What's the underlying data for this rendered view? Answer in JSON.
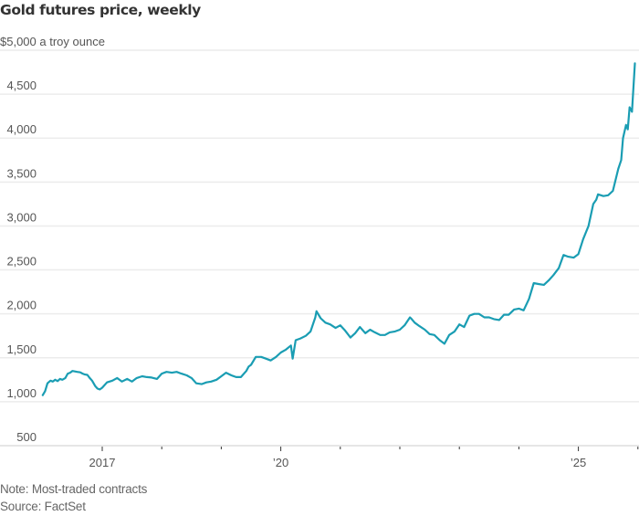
{
  "chart_data": {
    "type": "line",
    "title": "Gold futures price, weekly",
    "ylabel": "$5,000 a troy ounce",
    "xlabel": "",
    "note": "Note: Most-traded contracts",
    "source": "Source: FactSet",
    "ylim": [
      500,
      5000
    ],
    "xlim": [
      2016.0,
      2025.95
    ],
    "grid": true,
    "y_ticks": [
      {
        "value": 500,
        "label": "500"
      },
      {
        "value": 1000,
        "label": "1,000"
      },
      {
        "value": 1500,
        "label": "1,500"
      },
      {
        "value": 2000,
        "label": "2,000"
      },
      {
        "value": 2500,
        "label": "2,500"
      },
      {
        "value": 3000,
        "label": "3,000"
      },
      {
        "value": 3500,
        "label": "3,500"
      },
      {
        "value": 4000,
        "label": "4,000"
      },
      {
        "value": 4500,
        "label": "4,500"
      },
      {
        "value": 5000,
        "label": "$5,000 a troy ounce"
      }
    ],
    "x_ticks": [
      {
        "value": 2017,
        "label": "2017"
      },
      {
        "value": 2018,
        "label": ""
      },
      {
        "value": 2019,
        "label": ""
      },
      {
        "value": 2020,
        "label": "'20"
      },
      {
        "value": 2021,
        "label": ""
      },
      {
        "value": 2022,
        "label": ""
      },
      {
        "value": 2023,
        "label": ""
      },
      {
        "value": 2024,
        "label": ""
      },
      {
        "value": 2025,
        "label": "'25"
      },
      {
        "value": 2026,
        "label": ""
      }
    ],
    "series": [
      {
        "name": "Gold futures",
        "color": "#1a9db3",
        "x": [
          2016.0,
          2016.04,
          2016.08,
          2016.13,
          2016.17,
          2016.21,
          2016.25,
          2016.29,
          2016.33,
          2016.38,
          2016.42,
          2016.46,
          2016.5,
          2016.54,
          2016.58,
          2016.63,
          2016.67,
          2016.71,
          2016.75,
          2016.79,
          2016.83,
          2016.88,
          2016.92,
          2016.96,
          2017.0,
          2017.08,
          2017.17,
          2017.25,
          2017.33,
          2017.42,
          2017.5,
          2017.58,
          2017.67,
          2017.75,
          2017.83,
          2017.92,
          2018.0,
          2018.08,
          2018.17,
          2018.25,
          2018.33,
          2018.42,
          2018.5,
          2018.58,
          2018.67,
          2018.75,
          2018.83,
          2018.92,
          2019.0,
          2019.08,
          2019.17,
          2019.25,
          2019.33,
          2019.42,
          2019.46,
          2019.5,
          2019.58,
          2019.67,
          2019.75,
          2019.83,
          2019.92,
          2020.0,
          2020.08,
          2020.17,
          2020.2,
          2020.25,
          2020.33,
          2020.42,
          2020.5,
          2020.58,
          2020.6,
          2020.67,
          2020.75,
          2020.83,
          2020.92,
          2021.0,
          2021.08,
          2021.17,
          2021.25,
          2021.33,
          2021.42,
          2021.5,
          2021.58,
          2021.67,
          2021.75,
          2021.83,
          2021.92,
          2022.0,
          2022.08,
          2022.17,
          2022.2,
          2022.25,
          2022.33,
          2022.42,
          2022.5,
          2022.58,
          2022.67,
          2022.75,
          2022.83,
          2022.92,
          2023.0,
          2023.08,
          2023.17,
          2023.25,
          2023.33,
          2023.42,
          2023.5,
          2023.58,
          2023.67,
          2023.75,
          2023.83,
          2023.92,
          2024.0,
          2024.08,
          2024.17,
          2024.25,
          2024.33,
          2024.42,
          2024.5,
          2024.58,
          2024.67,
          2024.75,
          2024.83,
          2024.92,
          2025.0,
          2025.08,
          2025.17,
          2025.25,
          2025.3,
          2025.33,
          2025.42,
          2025.5,
          2025.58,
          2025.67,
          2025.72,
          2025.75,
          2025.8,
          2025.83,
          2025.86,
          2025.9,
          2025.95
        ],
        "values": [
          1075,
          1120,
          1210,
          1240,
          1230,
          1250,
          1235,
          1260,
          1250,
          1270,
          1320,
          1330,
          1350,
          1345,
          1340,
          1335,
          1320,
          1310,
          1305,
          1270,
          1240,
          1180,
          1150,
          1140,
          1160,
          1220,
          1240,
          1270,
          1230,
          1260,
          1230,
          1270,
          1290,
          1280,
          1275,
          1260,
          1320,
          1340,
          1330,
          1340,
          1320,
          1300,
          1270,
          1210,
          1200,
          1220,
          1230,
          1250,
          1290,
          1330,
          1300,
          1280,
          1280,
          1350,
          1400,
          1420,
          1510,
          1510,
          1490,
          1470,
          1510,
          1560,
          1590,
          1640,
          1490,
          1700,
          1720,
          1750,
          1800,
          1960,
          2030,
          1950,
          1900,
          1880,
          1840,
          1870,
          1810,
          1730,
          1780,
          1850,
          1780,
          1820,
          1790,
          1760,
          1760,
          1790,
          1800,
          1820,
          1870,
          1960,
          1940,
          1900,
          1860,
          1820,
          1770,
          1760,
          1700,
          1660,
          1760,
          1800,
          1880,
          1850,
          1980,
          2000,
          2000,
          1960,
          1960,
          1940,
          1930,
          1990,
          1990,
          2050,
          2060,
          2040,
          2170,
          2350,
          2340,
          2330,
          2380,
          2440,
          2520,
          2670,
          2650,
          2640,
          2680,
          2850,
          3000,
          3250,
          3300,
          3360,
          3340,
          3350,
          3400,
          3650,
          3750,
          4000,
          4150,
          4100,
          4350,
          4300,
          4850
        ]
      }
    ]
  }
}
